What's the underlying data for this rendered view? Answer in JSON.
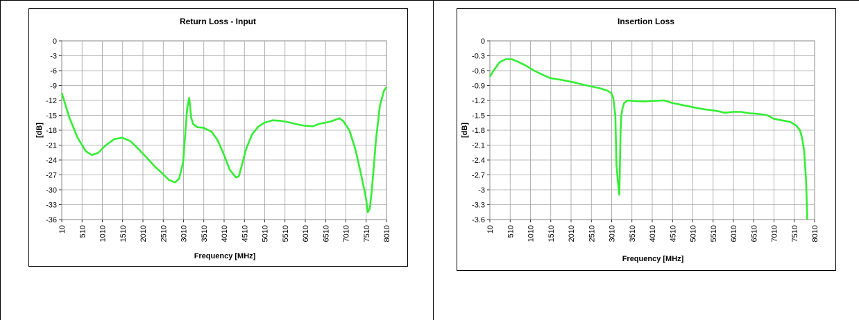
{
  "chart_data": [
    {
      "type": "line",
      "title": "Return Loss - Input",
      "xlabel": "Frequency [MHz]",
      "ylabel": "[dB]",
      "xlim": [
        10,
        8010
      ],
      "ylim": [
        -36,
        0
      ],
      "x_ticks": [
        10,
        510,
        1010,
        1510,
        2010,
        2510,
        3010,
        3510,
        4010,
        4510,
        5010,
        5510,
        6010,
        6510,
        7010,
        7510,
        8010
      ],
      "y_ticks": [
        0,
        -3,
        -6,
        -9,
        -12,
        -15,
        -18,
        -21,
        -24,
        -27,
        -30,
        -33,
        -36
      ],
      "y_tick_labels": [
        "0",
        "-3",
        "-6",
        "-9",
        "-12",
        "-15",
        "-18",
        "-21",
        "-24",
        "-27",
        "-30",
        "-33",
        "-36"
      ],
      "grid": true,
      "line_color": "#33ee33",
      "series": [
        {
          "x": [
            10,
            200,
            400,
            600,
            750,
            900,
            1100,
            1300,
            1500,
            1700,
            1900,
            2100,
            2300,
            2500,
            2650,
            2800,
            2900,
            3000,
            3050,
            3100,
            3150,
            3200,
            3250,
            3350,
            3500,
            3700,
            3850,
            4000,
            4150,
            4300,
            4370,
            4450,
            4550,
            4700,
            4850,
            5000,
            5200,
            5400,
            5600,
            5800,
            6000,
            6200,
            6350,
            6500,
            6650,
            6850,
            6950,
            7100,
            7250,
            7400,
            7500,
            7550,
            7600,
            7650,
            7700,
            7750,
            7850,
            7950,
            8010
          ],
          "y": [
            -10.5,
            -15.5,
            -19.5,
            -22.2,
            -23,
            -22.6,
            -21,
            -19.8,
            -19.5,
            -20.2,
            -21.8,
            -23.5,
            -25.3,
            -26.8,
            -28,
            -28.5,
            -27.8,
            -24.5,
            -19,
            -13.5,
            -11.5,
            -15.5,
            -16.8,
            -17.4,
            -17.5,
            -18.3,
            -20,
            -22.8,
            -26,
            -27.5,
            -27.3,
            -25,
            -21.8,
            -18.8,
            -17.3,
            -16.5,
            -16,
            -16.1,
            -16.4,
            -16.8,
            -17.1,
            -17.2,
            -16.7,
            -16.5,
            -16.2,
            -15.6,
            -16.2,
            -18.1,
            -22,
            -27.5,
            -31.5,
            -34.5,
            -33.8,
            -30,
            -25,
            -20,
            -13,
            -10,
            -9.3
          ]
        }
      ]
    },
    {
      "type": "line",
      "title": "Insertion Loss",
      "xlabel": "Frequency [MHz]",
      "ylabel": "[dB]",
      "xlim": [
        10,
        8010
      ],
      "ylim": [
        -3.6,
        0
      ],
      "x_ticks": [
        10,
        510,
        1010,
        1510,
        2010,
        2510,
        3010,
        3510,
        4010,
        4510,
        5010,
        5510,
        6010,
        6510,
        7010,
        7510,
        8010
      ],
      "y_ticks": [
        0,
        -0.3,
        -0.6,
        -0.9,
        -1.2,
        -1.5,
        -1.8,
        -2.1,
        -2.4,
        -2.7,
        -3,
        -3.3,
        -3.6
      ],
      "y_tick_labels": [
        "0",
        "-0.3",
        "-0.6",
        "-0.9",
        "-1.2",
        "-1.5",
        "-1.8",
        "-2.1",
        "-2.4",
        "-2.7",
        "-3",
        "-3.3",
        "-3.6"
      ],
      "grid": true,
      "line_color": "#33ee33",
      "series": [
        {
          "x": [
            10,
            100,
            250,
            400,
            550,
            700,
            900,
            1100,
            1300,
            1500,
            1800,
            2100,
            2400,
            2700,
            2900,
            3000,
            3050,
            3100,
            3130,
            3160,
            3200,
            3230,
            3250,
            3280,
            3320,
            3400,
            3550,
            3800,
            4000,
            4300,
            4500,
            4800,
            5100,
            5300,
            5500,
            5650,
            5800,
            6000,
            6200,
            6400,
            6600,
            6700,
            6850,
            7000,
            7200,
            7400,
            7550,
            7650,
            7700,
            7750,
            7800,
            7830
          ],
          "y": [
            -0.72,
            -0.6,
            -0.43,
            -0.37,
            -0.37,
            -0.42,
            -0.5,
            -0.6,
            -0.68,
            -0.75,
            -0.79,
            -0.84,
            -0.9,
            -0.95,
            -1.0,
            -1.05,
            -1.15,
            -1.5,
            -2.5,
            -2.8,
            -3.1,
            -1.8,
            -1.5,
            -1.35,
            -1.25,
            -1.2,
            -1.21,
            -1.22,
            -1.21,
            -1.2,
            -1.25,
            -1.3,
            -1.35,
            -1.38,
            -1.4,
            -1.42,
            -1.45,
            -1.43,
            -1.43,
            -1.46,
            -1.47,
            -1.48,
            -1.5,
            -1.57,
            -1.6,
            -1.63,
            -1.7,
            -1.8,
            -1.95,
            -2.2,
            -2.8,
            -3.6
          ]
        }
      ]
    }
  ]
}
